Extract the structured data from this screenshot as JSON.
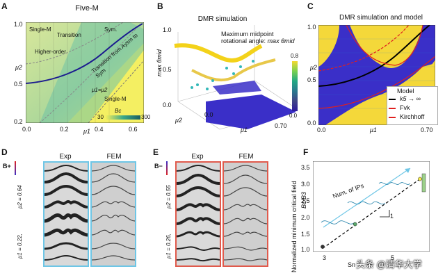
{
  "panel_a": {
    "letter": "A",
    "title": "Five-M",
    "y_ticks": [
      "1.0",
      "0.5",
      "0.2"
    ],
    "x_ticks": [
      "0.0",
      "0.2",
      "0.4",
      "0.6"
    ],
    "y_axis_label": "μ2",
    "x_axis_label": "μ1",
    "regions": [
      "Single-M",
      "Transition",
      "Sym.",
      "Higher-order",
      "Transition from Aysm to Sym",
      "Single-M"
    ],
    "equation": "μ1=μ2",
    "colorbar": {
      "label": "Bc",
      "min": "30",
      "max": "300"
    }
  },
  "panel_b": {
    "letter": "B",
    "title": "DMR simulation",
    "z_label": "max θmid",
    "z_ticks": [
      "1.0",
      "0.5",
      "0.0"
    ],
    "x_ticks": [
      "0.0",
      "0.70"
    ],
    "y_axis_label": "μ2",
    "x_axis_label": "μ1",
    "annotation_line1": "Maximum midpoint",
    "annotation_line2": "rotational angle:",
    "annotation_math": "max θmid",
    "colorbar": {
      "max": "0.8",
      "min": "0.0"
    }
  },
  "panel_c": {
    "letter": "C",
    "title": "DMR simulation and model",
    "y_ticks": [
      "1.0",
      "0.5",
      "0.0"
    ],
    "x_ticks": [
      "0.0",
      "0.70"
    ],
    "y_axis_label": "μ2",
    "x_axis_label": "μ1",
    "legend": [
      "Model",
      "k5 → ∞",
      "Fvk",
      "Kirchhoff"
    ]
  },
  "panel_d": {
    "letter": "D",
    "col1": "Exp",
    "col2": "FEM",
    "field": "B+",
    "params_line1": "μ1 = 0.22,",
    "params_line2": "μ2 = 0.64"
  },
  "panel_e": {
    "letter": "E",
    "col1": "Exp",
    "col2": "FEM",
    "field": "B−",
    "params_line1": "μ1 = 0.26,",
    "params_line2": "μ2 = 0.55"
  },
  "panel_f": {
    "letter": "F",
    "y_label": "Normalized minimum critical field",
    "ratio_label": "Bc/B3",
    "arrow_label": "Num. of IPs",
    "slope_label": "1",
    "y_ticks": [
      "3.5",
      "3.0",
      "2.5",
      "2.0",
      "1.5",
      "1.0"
    ],
    "x_ticks": [
      "3",
      "5"
    ],
    "x_label_partial": "Sn",
    "watermark": "头条 @清华大学",
    "chart_data": {
      "type": "scatter",
      "x": [
        3,
        4,
        6
      ],
      "y": [
        0.95,
        1.65,
        3.05
      ],
      "trend": {
        "x": [
          3,
          6
        ],
        "y": [
          0.9,
          3.05
        ],
        "style": "dashed"
      },
      "ylim": [
        0.8,
        3.6
      ]
    }
  },
  "colors": {
    "accent_blue": "#1b1b8f",
    "model_red": "#e0201e",
    "exp_frame_blue": "#6ec6e6",
    "exp_frame_red": "#e05a4c",
    "yellow": "#f5e94a"
  }
}
